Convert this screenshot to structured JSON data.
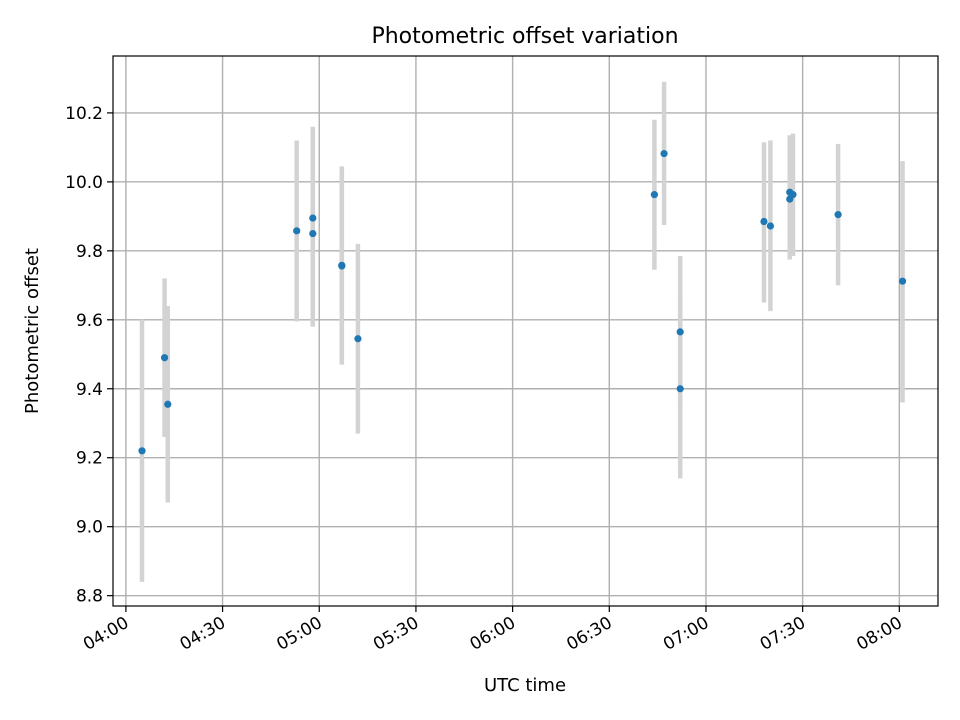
{
  "chart_data": {
    "type": "scatter",
    "title": "Photometric offset variation",
    "xlabel": "UTC time",
    "ylabel": "Photometric offset",
    "xlim": [
      "03:56",
      "08:12"
    ],
    "ylim": [
      8.77,
      10.365
    ],
    "x_ticks": [
      "04:00",
      "04:30",
      "05:00",
      "05:30",
      "06:00",
      "06:30",
      "07:00",
      "07:30",
      "08:00"
    ],
    "y_ticks": [
      8.8,
      9.0,
      9.2,
      9.4,
      9.6,
      9.8,
      10.0,
      10.2
    ],
    "grid": true,
    "colors": {
      "marker": "#1f77b4",
      "error_bar": "#d3d3d3",
      "grid": "#b0b0b0"
    },
    "points": [
      {
        "x": "04:05",
        "y": 9.22,
        "ylow": 8.84,
        "yhigh": 9.6
      },
      {
        "x": "04:12",
        "y": 9.49,
        "ylow": 9.26,
        "yhigh": 9.72
      },
      {
        "x": "04:13",
        "y": 9.355,
        "ylow": 9.07,
        "yhigh": 9.64
      },
      {
        "x": "04:53",
        "y": 9.858,
        "ylow": 9.595,
        "yhigh": 10.12
      },
      {
        "x": "04:58",
        "y": 9.895,
        "ylow": 9.645,
        "yhigh": 10.16
      },
      {
        "x": "04:58",
        "y": 9.85,
        "ylow": 9.58,
        "yhigh": 10.115
      },
      {
        "x": "05:07",
        "y": 9.758,
        "ylow": 9.48,
        "yhigh": 10.035
      },
      {
        "x": "05:07",
        "y": 9.756,
        "ylow": 9.47,
        "yhigh": 10.045
      },
      {
        "x": "05:12",
        "y": 9.545,
        "ylow": 9.27,
        "yhigh": 9.82
      },
      {
        "x": "06:44",
        "y": 9.963,
        "ylow": 9.745,
        "yhigh": 10.18
      },
      {
        "x": "06:47",
        "y": 10.082,
        "ylow": 9.875,
        "yhigh": 10.29
      },
      {
        "x": "06:52",
        "y": 9.565,
        "ylow": 9.35,
        "yhigh": 9.785
      },
      {
        "x": "06:52",
        "y": 9.4,
        "ylow": 9.14,
        "yhigh": 9.665
      },
      {
        "x": "07:18",
        "y": 9.885,
        "ylow": 9.65,
        "yhigh": 10.115
      },
      {
        "x": "07:20",
        "y": 9.872,
        "ylow": 9.625,
        "yhigh": 10.12
      },
      {
        "x": "07:26",
        "y": 9.97,
        "ylow": 9.795,
        "yhigh": 10.135
      },
      {
        "x": "07:26",
        "y": 9.95,
        "ylow": 9.775,
        "yhigh": 10.13
      },
      {
        "x": "07:27",
        "y": 9.963,
        "ylow": 9.785,
        "yhigh": 10.14
      },
      {
        "x": "07:41",
        "y": 9.905,
        "ylow": 9.7,
        "yhigh": 10.11
      },
      {
        "x": "08:01",
        "y": 9.712,
        "ylow": 9.36,
        "yhigh": 10.06
      }
    ]
  }
}
